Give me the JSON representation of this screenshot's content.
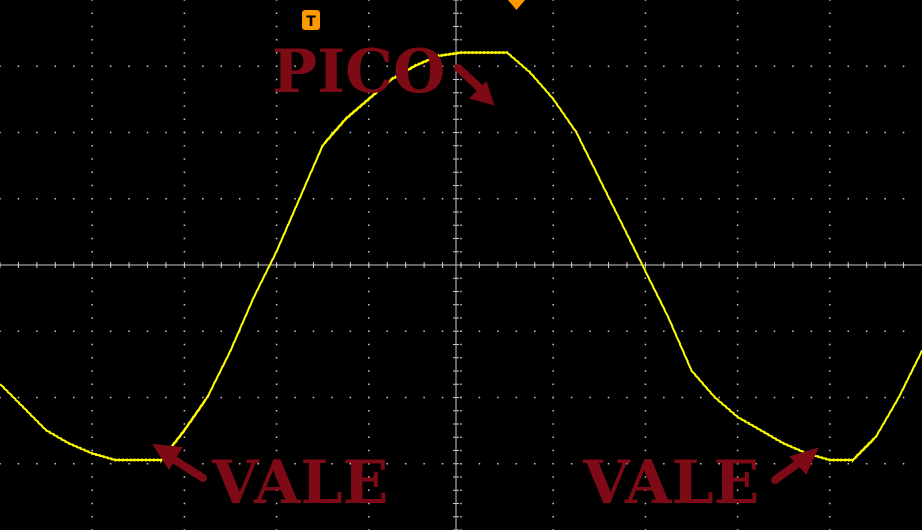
{
  "chart_data": {
    "type": "line",
    "title": "",
    "xlabel": "",
    "ylabel": "",
    "grid": true,
    "divisions": {
      "x": 10,
      "y": 8
    },
    "xlim": [
      0,
      10
    ],
    "ylim": [
      -4,
      4
    ],
    "series": [
      {
        "color": "#ffff00",
        "x": [
          0.0,
          0.25,
          0.5,
          0.75,
          1.0,
          1.25,
          1.5,
          1.75,
          2.0,
          2.25,
          2.5,
          2.75,
          3.0,
          3.25,
          3.5,
          3.75,
          4.0,
          4.25,
          4.5,
          4.75,
          5.0,
          5.25,
          5.5,
          5.75,
          6.0,
          6.25,
          6.5,
          6.75,
          7.0,
          7.25,
          7.5,
          7.75,
          8.0,
          8.25,
          8.5,
          8.75,
          9.0,
          9.25,
          9.5,
          9.75,
          10.0
        ],
        "values": [
          -1.8,
          -2.15,
          -2.5,
          -2.7,
          -2.85,
          -2.95,
          -2.95,
          -2.95,
          -2.5,
          -2.0,
          -1.3,
          -0.5,
          0.2,
          1.0,
          1.8,
          2.2,
          2.5,
          2.8,
          3.0,
          3.15,
          3.2,
          3.2,
          3.2,
          2.9,
          2.5,
          2.0,
          1.3,
          0.6,
          -0.1,
          -0.8,
          -1.6,
          -2.0,
          -2.3,
          -2.5,
          -2.7,
          -2.85,
          -2.95,
          -2.95,
          -2.6,
          -2.0,
          -1.3
        ]
      }
    ],
    "annotations": [
      {
        "text": "PICO",
        "x": 5.3,
        "y": 3.2
      },
      {
        "text": "VALE",
        "x": 1.7,
        "y": -2.95
      },
      {
        "text": "VALE",
        "x": 8.85,
        "y": -2.95
      }
    ]
  },
  "markers": {
    "trigger_label": "T",
    "trigger_color": "#ff9900",
    "trigger_position_marker_color": "#ff9900"
  },
  "colors": {
    "background": "#000000",
    "grid": "#c8c8c8",
    "trace": "#ffff00",
    "annotation": "#7d0a14"
  }
}
